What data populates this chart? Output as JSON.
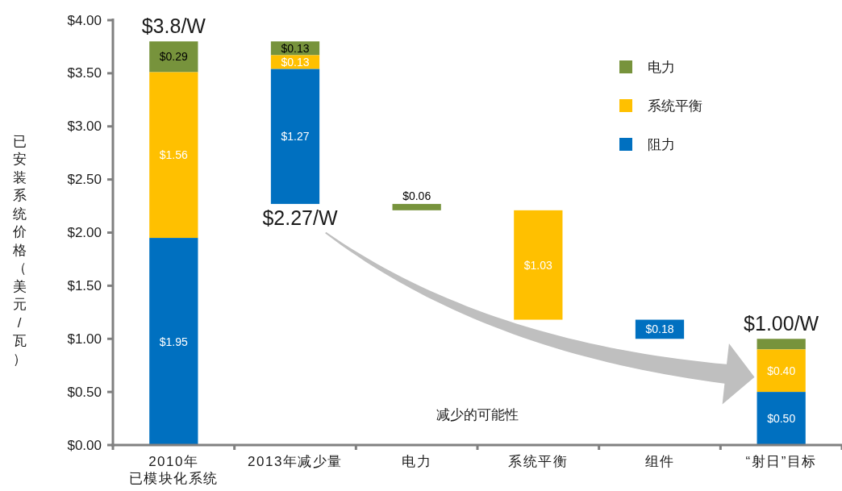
{
  "chart_data": {
    "type": "bar",
    "ylabel": "已安装系统价格（美元/瓦）",
    "categories": [
      "2010年已模块化系统",
      "2013年减少量",
      "电力",
      "系统平衡",
      "组件",
      "“射日”目标"
    ],
    "series": [
      {
        "name": "电力",
        "color": "#77933c",
        "base": [
          3.51,
          3.67,
          2.21,
          null,
          null,
          0.9
        ],
        "values": [
          0.29,
          0.13,
          0.06,
          null,
          null,
          0.1
        ],
        "value_labels": [
          "$0.29",
          "$0.13",
          "$0.06",
          null,
          null,
          null
        ]
      },
      {
        "name": "系统平衡",
        "color": "#ffc000",
        "base": [
          1.95,
          3.54,
          null,
          1.18,
          null,
          0.5
        ],
        "values": [
          1.56,
          0.13,
          null,
          1.03,
          null,
          0.4
        ],
        "value_labels": [
          "$1.56",
          "$0.13",
          null,
          "$1.03",
          null,
          "$0.40"
        ]
      },
      {
        "name": "阻力",
        "color": "#0070c0",
        "base": [
          0,
          2.27,
          null,
          null,
          1.0,
          0
        ],
        "values": [
          1.95,
          1.27,
          null,
          null,
          0.18,
          0.5
        ],
        "value_labels": [
          "$1.95",
          "$1.27",
          null,
          null,
          "$0.18",
          "$0.50"
        ]
      }
    ],
    "ylim": [
      0,
      4
    ],
    "yticks": [
      {
        "value": 0,
        "label": "$0.00"
      },
      {
        "value": 0.5,
        "label": "$0.50"
      },
      {
        "value": 1,
        "label": "$1.00"
      },
      {
        "value": 1.5,
        "label": "$1.50"
      },
      {
        "value": 2,
        "label": "$2.00"
      },
      {
        "value": 2.5,
        "label": "$2.50"
      },
      {
        "value": 3,
        "label": "$3.00"
      },
      {
        "value": 3.5,
        "label": "$3.50"
      },
      {
        "value": 4,
        "label": "$4.00"
      }
    ],
    "legend": "top right",
    "annotations": [
      {
        "text": "$3.8/W",
        "x": "2010年已模块化系统",
        "y": 3.8
      },
      {
        "text": "$2.27/W",
        "x": "2013年减少量",
        "y": 2.27
      },
      {
        "text": "$1.00/W",
        "x": "“射日”目标",
        "y": 1.0
      },
      "减少的可能性"
    ]
  }
}
